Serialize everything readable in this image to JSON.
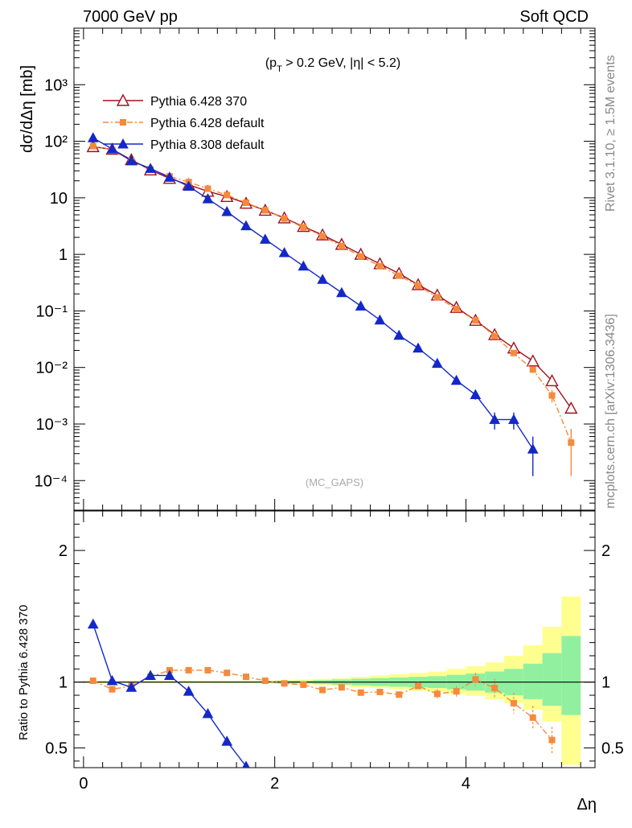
{
  "header": {
    "left_title": "7000 GeV pp",
    "right_title": "Soft QCD"
  },
  "side_labels": {
    "rivet": "Rivet 3.1.10, ≥ 1.5M events",
    "mcplots": "mcplots.cern.ch [arXiv:1306.3436]"
  },
  "colors": {
    "pythia6_370": "#a0101e",
    "pythia6_default": "#f58a3c",
    "pythia8_default": "#1428c8",
    "band_inner": "#90f0a0",
    "band_outer": "#ffff90",
    "reference_line": "#000000"
  },
  "chart_data": [
    {
      "type": "line",
      "title": "",
      "annotation": "(p_T > 0.2 GeV, |η| < 5.2)",
      "watermark": "(MC_GAPS)",
      "xlabel": "Δη",
      "ylabel": "dσ/dΔη [mb]",
      "xlim": [
        -0.1,
        5.35
      ],
      "ylim": [
        3e-05,
        10000
      ],
      "yscale": "log",
      "y_tick_labels": [
        "10⁻⁴",
        "10⁻³",
        "10⁻²",
        "10⁻¹",
        "1",
        "10",
        "10²",
        "10³"
      ],
      "legend_position": "top-left",
      "series": [
        {
          "name": "Pythia 6.428 370",
          "marker": "open-triangle",
          "x": [
            0.1,
            0.3,
            0.5,
            0.7,
            0.9,
            1.1,
            1.3,
            1.5,
            1.7,
            1.9,
            2.1,
            2.3,
            2.5,
            2.7,
            2.9,
            3.1,
            3.3,
            3.5,
            3.7,
            3.9,
            4.1,
            4.3,
            4.5,
            4.7,
            4.9,
            5.1
          ],
          "values": [
            80,
            72,
            47,
            31,
            22,
            17,
            13,
            10.5,
            8,
            6,
            4.4,
            3.1,
            2.2,
            1.5,
            1.0,
            0.68,
            0.46,
            0.29,
            0.19,
            0.115,
            0.068,
            0.038,
            0.022,
            0.013,
            0.0058,
            0.0019
          ]
        },
        {
          "name": "Pythia 6.428 default",
          "marker": "filled-square",
          "x": [
            0.1,
            0.3,
            0.5,
            0.7,
            0.9,
            1.1,
            1.3,
            1.5,
            1.7,
            1.9,
            2.1,
            2.3,
            2.5,
            2.7,
            2.9,
            3.1,
            3.3,
            3.5,
            3.7,
            3.9,
            4.1,
            4.3,
            4.5,
            4.7,
            4.9,
            5.1
          ],
          "values": [
            82,
            70,
            45,
            32,
            24,
            19,
            14.5,
            11.2,
            8.2,
            6.0,
            4.3,
            3.0,
            2.1,
            1.4,
            0.92,
            0.62,
            0.42,
            0.28,
            0.175,
            0.108,
            0.068,
            0.036,
            0.018,
            0.0092,
            0.0032,
            0.00047
          ],
          "errors": [
            0,
            0,
            0,
            0,
            0,
            0,
            0,
            0,
            0,
            0,
            0,
            0,
            0,
            0,
            0,
            0,
            0,
            0,
            0,
            0,
            0,
            0.003,
            0.002,
            0.0012,
            0.0008,
            0.00035
          ]
        },
        {
          "name": "Pythia 8.308 default",
          "marker": "filled-triangle",
          "x": [
            0.1,
            0.3,
            0.5,
            0.7,
            0.9,
            1.1,
            1.3,
            1.5,
            1.7,
            1.9,
            2.1,
            2.3,
            2.5,
            2.7,
            2.9,
            3.1,
            3.3,
            3.5,
            3.7,
            3.9,
            4.1,
            4.3,
            4.5,
            4.7
          ],
          "values": [
            115,
            73,
            45,
            33,
            23,
            16,
            9.6,
            5.7,
            3.2,
            1.85,
            1.07,
            0.62,
            0.36,
            0.21,
            0.122,
            0.069,
            0.037,
            0.022,
            0.0118,
            0.0059,
            0.0033,
            0.0012,
            0.0012,
            0.00036
          ],
          "errors": [
            0,
            0,
            0,
            0,
            0,
            0,
            0,
            0,
            0,
            0,
            0,
            0,
            0,
            0,
            0,
            0,
            0,
            0,
            0,
            0,
            0.0006,
            0.0004,
            0.0004,
            0.00024
          ]
        }
      ]
    },
    {
      "type": "line",
      "title": "",
      "xlabel": "Δη",
      "ylabel": "Ratio to Pythia 6.428 370",
      "xlim": [
        -0.1,
        5.35
      ],
      "ylim": [
        0.35,
        2.3
      ],
      "x_tick_labels": [
        "0",
        "2",
        "4"
      ],
      "y_tick_labels": [
        "0.5",
        "1",
        "2"
      ],
      "reference_line": 1,
      "band_x_edges": [
        0.0,
        0.2,
        0.4,
        0.6,
        0.8,
        1.0,
        1.2,
        1.4,
        1.6,
        1.8,
        2.0,
        2.2,
        2.4,
        2.6,
        2.8,
        3.0,
        3.2,
        3.4,
        3.6,
        3.8,
        4.0,
        4.2,
        4.4,
        4.6,
        4.8,
        5.0,
        5.2
      ],
      "band_inner": {
        "low": [
          0.995,
          0.995,
          0.995,
          0.995,
          0.995,
          0.995,
          0.995,
          0.995,
          0.995,
          0.995,
          0.99,
          0.99,
          0.985,
          0.98,
          0.975,
          0.97,
          0.965,
          0.96,
          0.955,
          0.945,
          0.935,
          0.92,
          0.9,
          0.87,
          0.82,
          0.75
        ],
        "high": [
          1.005,
          1.005,
          1.005,
          1.005,
          1.005,
          1.005,
          1.005,
          1.005,
          1.005,
          1.005,
          1.01,
          1.01,
          1.015,
          1.02,
          1.025,
          1.03,
          1.035,
          1.04,
          1.045,
          1.055,
          1.065,
          1.08,
          1.1,
          1.14,
          1.22,
          1.35
        ]
      },
      "band_outer": {
        "low": [
          0.99,
          0.99,
          0.99,
          0.99,
          0.99,
          0.99,
          0.99,
          0.99,
          0.99,
          0.99,
          0.985,
          0.98,
          0.975,
          0.97,
          0.96,
          0.955,
          0.945,
          0.935,
          0.925,
          0.91,
          0.895,
          0.87,
          0.84,
          0.79,
          0.7,
          0.37
        ],
        "high": [
          1.01,
          1.01,
          1.01,
          1.01,
          1.01,
          1.01,
          1.01,
          1.01,
          1.01,
          1.01,
          1.015,
          1.02,
          1.025,
          1.03,
          1.04,
          1.05,
          1.06,
          1.07,
          1.08,
          1.1,
          1.12,
          1.15,
          1.2,
          1.28,
          1.42,
          1.65
        ]
      },
      "series": [
        {
          "name": "Pythia 6.428 default",
          "marker": "filled-square",
          "x": [
            0.1,
            0.3,
            0.5,
            0.7,
            0.9,
            1.1,
            1.3,
            1.5,
            1.7,
            1.9,
            2.1,
            2.3,
            2.5,
            2.7,
            2.9,
            3.1,
            3.3,
            3.5,
            3.7,
            3.9,
            4.1,
            4.3,
            4.5,
            4.7,
            4.9
          ],
          "values": [
            1.01,
            0.945,
            0.97,
            1.04,
            1.09,
            1.09,
            1.09,
            1.07,
            1.04,
            1.01,
            0.99,
            0.98,
            0.94,
            0.96,
            0.92,
            0.925,
            0.905,
            0.97,
            0.91,
            0.93,
            1.02,
            0.955,
            0.84,
            0.73,
            0.56
          ],
          "errors": [
            0,
            0,
            0,
            0,
            0,
            0,
            0,
            0,
            0,
            0,
            0,
            0,
            0,
            0,
            0,
            0.02,
            0.02,
            0.03,
            0.035,
            0.04,
            0.05,
            0.07,
            0.08,
            0.09,
            0.1
          ]
        },
        {
          "name": "Pythia 8.308 default",
          "marker": "filled-triangle",
          "x": [
            0.1,
            0.3,
            0.5,
            0.7,
            0.9,
            1.1,
            1.3,
            1.5,
            1.7
          ],
          "values": [
            1.44,
            1.01,
            0.96,
            1.05,
            1.05,
            0.93,
            0.76,
            0.55,
            0.36
          ]
        }
      ]
    }
  ]
}
